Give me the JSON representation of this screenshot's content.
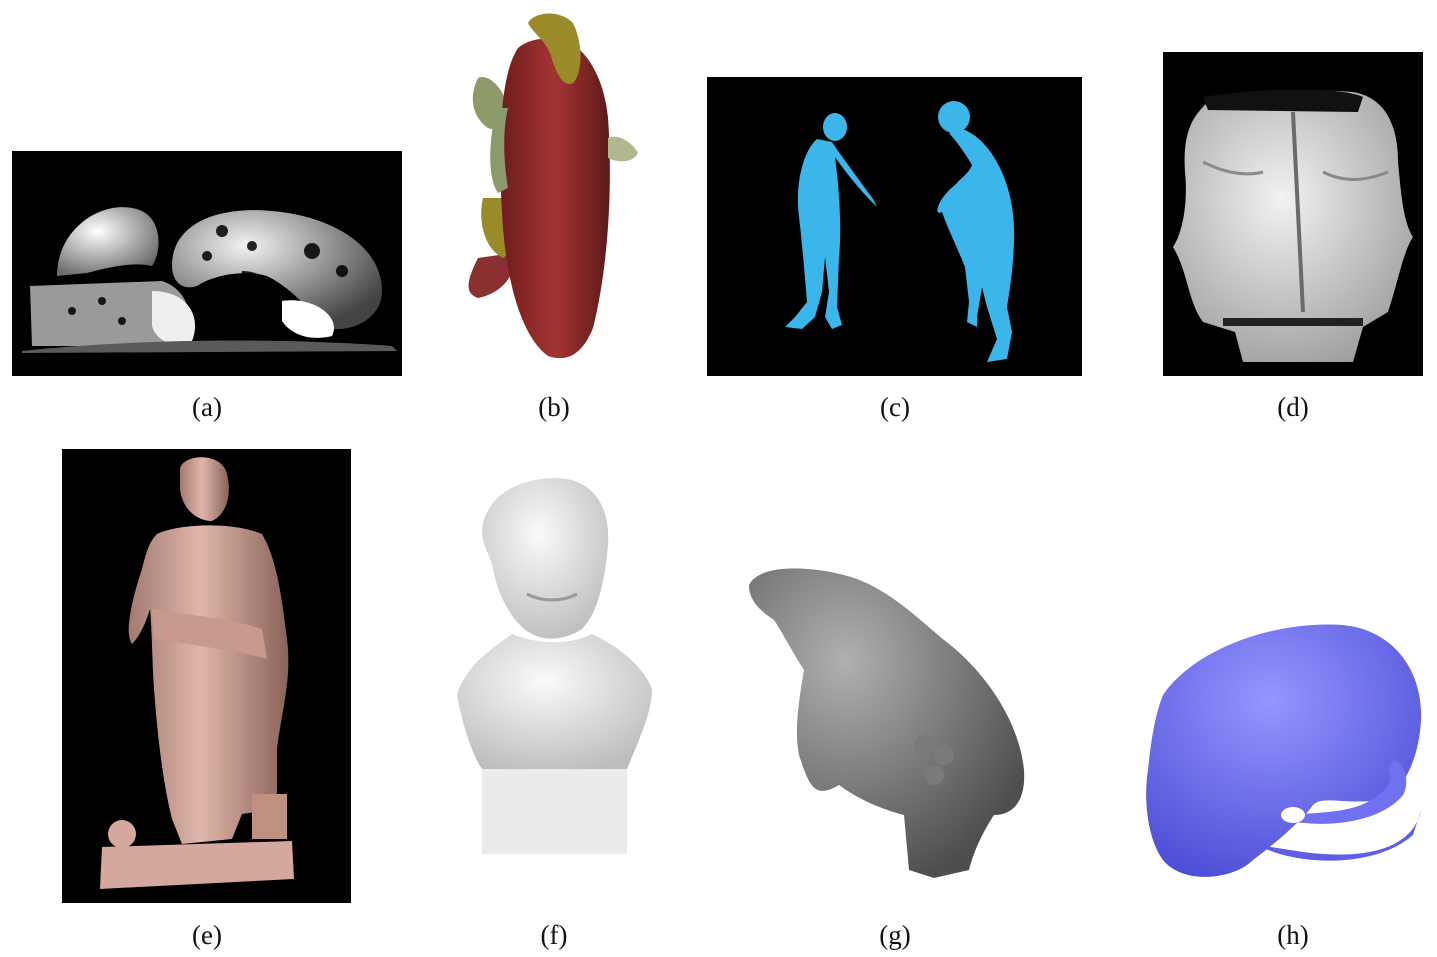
{
  "figure": {
    "captions": {
      "a": "(a)",
      "b": "(b)",
      "c": "(c)",
      "d": "(d)",
      "e": "(e)",
      "f": "(f)",
      "g": "(g)",
      "h": "(h)"
    },
    "panel_colors": {
      "a": "#e8e8e8",
      "b": "#9a2f2f",
      "c": "#3ab6ea",
      "d": "#d6d6d6",
      "e": "#d4a89c",
      "f": "#e4e4e4",
      "g": "#7a7a7a",
      "h": "#6f70f2"
    }
  }
}
